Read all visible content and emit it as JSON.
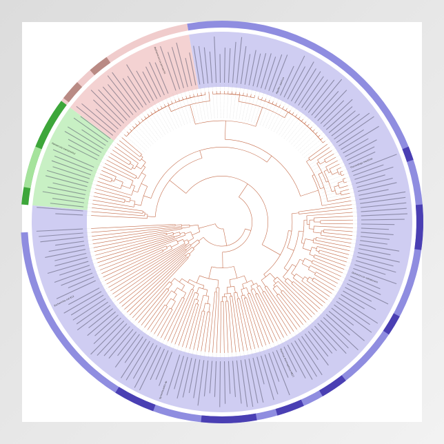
{
  "leaf_labels": [
    "Haloarcula marismortui",
    "Methanococcus jannaschii",
    "Aquifex aeolicus",
    "Thermotoga maritima",
    "Deinococcus radiodurans",
    "Thermus thermophilus HB27",
    "Synechocystis sp.",
    "Escherichia coli K12"
  ]
}
